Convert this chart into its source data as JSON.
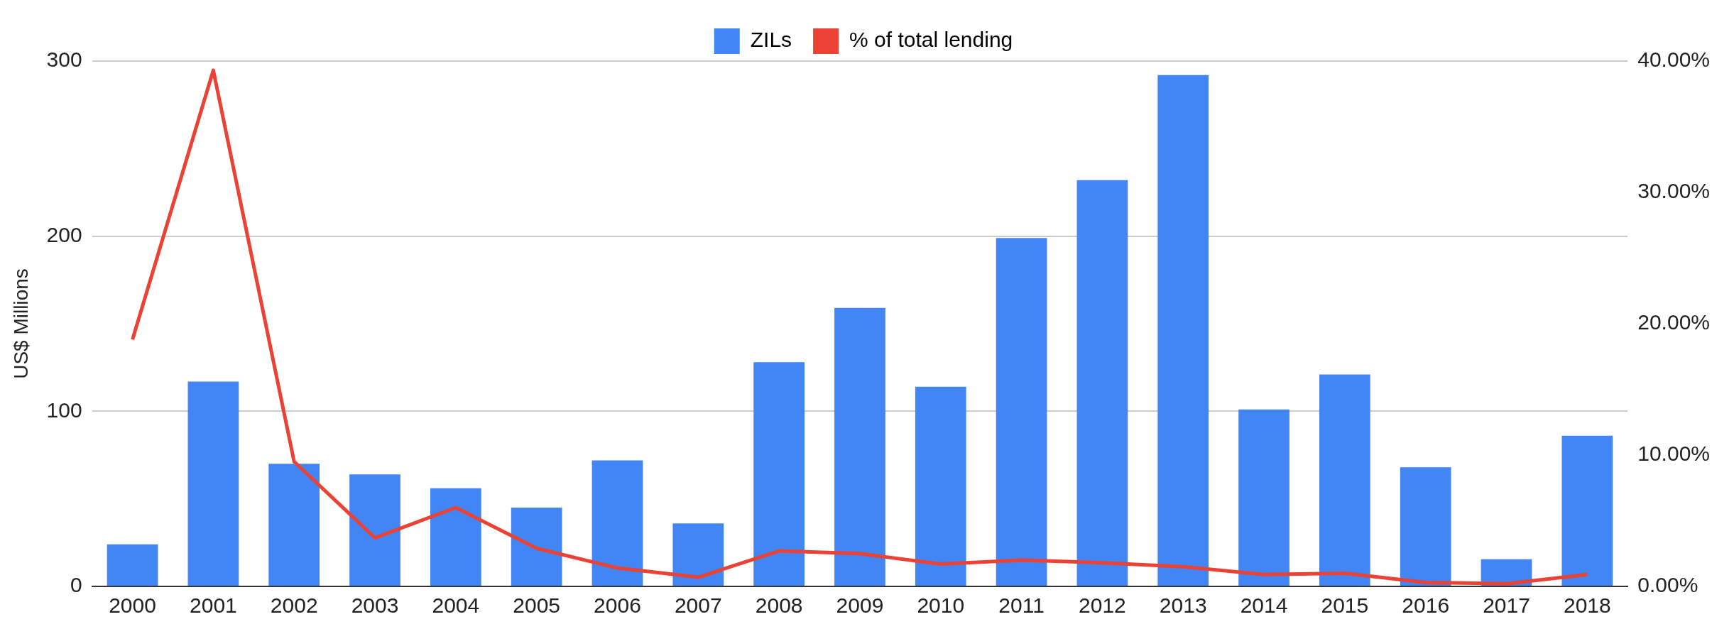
{
  "chart_data": {
    "type": "bar",
    "ylabel": "US$ Millions",
    "categories": [
      "2000",
      "2001",
      "2002",
      "2003",
      "2004",
      "2005",
      "2006",
      "2007",
      "2008",
      "2009",
      "2010",
      "2011",
      "2012",
      "2013",
      "2014",
      "2015",
      "2016",
      "2017",
      "2018"
    ],
    "series": [
      {
        "name": "ZILs",
        "color": "#4285f4",
        "values": [
          24,
          117,
          70,
          64,
          56,
          45,
          72,
          36,
          128,
          159,
          114,
          199,
          232,
          292,
          101,
          121,
          68,
          15.5,
          86
        ]
      },
      {
        "name": "% of total lending",
        "type": "line",
        "axis": "y2",
        "color": "#ea4335",
        "values": [
          18.8,
          39.3,
          9.5,
          3.7,
          6.0,
          2.9,
          1.4,
          0.7,
          2.7,
          2.5,
          1.7,
          2.0,
          1.8,
          1.5,
          0.9,
          1.0,
          0.3,
          0.2,
          0.9
        ]
      }
    ],
    "ylim": [
      0,
      300
    ],
    "yticks": [
      0,
      100,
      200,
      300
    ],
    "y2lim": [
      0,
      40
    ],
    "y2ticks": [
      {
        "value": 0,
        "label": "0.00%"
      },
      {
        "value": 10,
        "label": "10.00%"
      },
      {
        "value": 20,
        "label": "20.00%"
      },
      {
        "value": 30,
        "label": "30.00%"
      },
      {
        "value": 40,
        "label": "40.00%"
      }
    ],
    "grid": "y",
    "legend": "top"
  }
}
